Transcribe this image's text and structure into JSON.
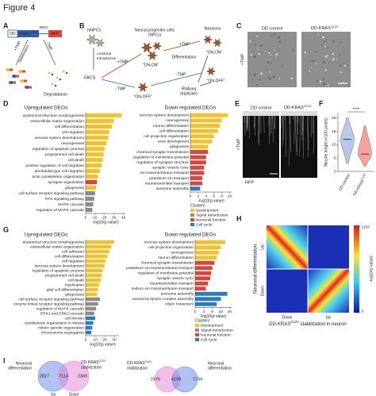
{
  "figure_title": "Figure 4",
  "panel_labels": [
    "A",
    "B",
    "C",
    "D",
    "E",
    "F",
    "G",
    "H",
    "I"
  ],
  "panel_a": {
    "dd": "DD",
    "kras": "KRAS",
    "kras_sup": "G12V",
    "ires": "IRES",
    "rfp": "RFP",
    "plus_tmp": "+TMP",
    "minus_tmp": "-TMP",
    "stabilization": "Stabilization",
    "degradation": "Degradataion"
  },
  "panel_b": {
    "hnpcs": "hNPCs",
    "lentiviral": [
      "Lentiviral",
      "transduction"
    ],
    "facs": "FACS",
    "npcs": [
      "Neural progenitor cells",
      "(NPCs)"
    ],
    "tmp_labels": [
      "+TMP",
      "-TMP",
      "+TMP",
      "-TMP"
    ],
    "states": [
      "\"ON-ON\"",
      "\"ON-OFF\"",
      "\"ON-ON\"",
      "\"ON-OFF\""
    ],
    "neurons": "Neurons",
    "differentiation": "Differentiation",
    "rnaseq": [
      "RNAseq",
      "(triplicate)"
    ]
  },
  "panel_c": {
    "labels": [
      "DD control",
      "DD-KRAS"
    ],
    "sup": "G12V",
    "side": "+TMP"
  },
  "panel_e": {
    "labels": [
      "DD control",
      "DD-KRAS"
    ],
    "sup": "G12V",
    "side": "+TMP",
    "channel": "RFP"
  },
  "chart_data": [
    {
      "type": "hbar",
      "title": "Upregulated DEGs",
      "categories": [
        "anatomical structure morphogenesis",
        "extracellular matrix organization",
        "cell differentiation",
        "cell migration",
        "nervous system development",
        "neurogenesis",
        "regulation of apoptotic process",
        "programmed cell death",
        "cell death",
        "positive regulation of cell migration",
        "ameboidal-type cell migration",
        "actin cytoskeleton organization",
        "synapse organization",
        "gliogenesis",
        "cell surface receptor signaling pathway",
        "RTK signaling pathway",
        "MAPK cascade",
        "regulation of MAPK cascade"
      ],
      "values": [
        38,
        30,
        28,
        25,
        24,
        22,
        20,
        19,
        18,
        17,
        15,
        13,
        12,
        11,
        10,
        9,
        8,
        7
      ],
      "colors": [
        "#f2c12e",
        "#f2c12e",
        "#f2c12e",
        "#f2c12e",
        "#f2c12e",
        "#f2c12e",
        "#f2c12e",
        "#f2c12e",
        "#f2c12e",
        "#f2c12e",
        "#f2c12e",
        "#f2c12e",
        "#d9443d",
        "#f2c12e",
        "#8c8c8c",
        "#8c8c8c",
        "#8c8c8c",
        "#8c8c8c"
      ],
      "xlim": [
        0,
        42
      ],
      "xticks": [
        0,
        10,
        20,
        30,
        40
      ],
      "xlabel": "-log10(p value)"
    },
    {
      "type": "hbar",
      "title": "Down regulated DEGs",
      "categories": [
        "nervous system development",
        "neurogenesis",
        "neuron differentiation",
        "cell differentiation",
        "cell projection organization",
        "axon development",
        "gliogenesis",
        "chemical synaptic transmission",
        "regulation of membrane potential",
        "regulation of synapse structure",
        "synaptic vesicle cycle",
        "ion transmembrane transport",
        "potassium ion transport",
        "neurotransmitter transport",
        "axoneme assembly"
      ],
      "values": [
        9.5,
        8,
        7.5,
        7,
        6,
        5.5,
        4.5,
        4.5,
        4,
        4,
        3.5,
        3.5,
        3,
        3,
        2.5
      ],
      "colors": [
        "#f2c12e",
        "#f2c12e",
        "#f2c12e",
        "#f2c12e",
        "#f2c12e",
        "#f2c12e",
        "#f2c12e",
        "#d9443d",
        "#d9443d",
        "#d9443d",
        "#d9443d",
        "#d9443d",
        "#d9443d",
        "#d9443d",
        "#2b7bbf"
      ],
      "xlim": [
        0,
        10.5
      ],
      "xticks": [
        0,
        2,
        4,
        6,
        8,
        10
      ],
      "xlabel": "-log10(p value)",
      "legend": {
        "title": "Clusters",
        "items": [
          {
            "name": "Development",
            "color": "#f2c12e"
          },
          {
            "name": "Signal transduction",
            "color": "#8c8c8c"
          },
          {
            "name": "Neuronal function",
            "color": "#d9443d"
          },
          {
            "name": "Cell cycle",
            "color": "#2b7bbf"
          }
        ]
      }
    },
    {
      "type": "hbar",
      "title": "Upregulated DEGs",
      "categories": [
        "anatomical structure morphogenesis",
        "extracellular matrix organization",
        "cell adhesion",
        "cell differentiation",
        "cell migration",
        "nervous system development",
        "regulation of apoptotic process",
        "programmed cell death",
        "cell death",
        "myelination",
        "glial cell differentiation",
        "gliogenesis",
        "cell surface receptor signaling pathway",
        "enzyme linked receptor signaling pathway",
        "regulation of MAPK cascade",
        "ERK1 and ERK2 cascade",
        "cell division",
        "cytoskeleton organization in mitosis",
        "mitotic spindle organization",
        "chromosome segregation"
      ],
      "values": [
        30,
        27,
        25,
        23,
        21,
        20,
        18,
        17,
        16,
        14,
        13,
        12,
        15,
        13,
        11,
        9,
        10,
        8,
        7,
        6
      ],
      "colors": [
        "#f2c12e",
        "#f2c12e",
        "#f2c12e",
        "#f2c12e",
        "#f2c12e",
        "#f2c12e",
        "#f2c12e",
        "#f2c12e",
        "#f2c12e",
        "#f2c12e",
        "#f2c12e",
        "#f2c12e",
        "#8c8c8c",
        "#8c8c8c",
        "#8c8c8c",
        "#8c8c8c",
        "#2b7bbf",
        "#2b7bbf",
        "#2b7bbf",
        "#2b7bbf"
      ],
      "xlim": [
        0,
        35
      ],
      "xticks": [
        0,
        10,
        20,
        30
      ],
      "xlabel": "-log10(p value)"
    },
    {
      "type": "hbar",
      "title": "Down regulated DEGs",
      "categories": [
        "nervous system development",
        "cell projection organization",
        "neurogenesis",
        "neuron differentiation",
        "chemical synaptic transmission",
        "potassium ion transmembrane transport",
        "regulation of membrane potential",
        "synaptic vesicle cycle",
        "neurotransmitter transport",
        "sodium ion transmembrane transport",
        "axoneme assembly",
        "axonemal dynein complex assembly",
        "cilium movement"
      ],
      "values": [
        14,
        12,
        11,
        10,
        9,
        8,
        7.5,
        7,
        6,
        5,
        15,
        12,
        10
      ],
      "colors": [
        "#f2c12e",
        "#f2c12e",
        "#f2c12e",
        "#f2c12e",
        "#d9443d",
        "#d9443d",
        "#d9443d",
        "#d9443d",
        "#d9443d",
        "#d9443d",
        "#2b7bbf",
        "#2b7bbf",
        "#2b7bbf"
      ],
      "xlim": [
        0,
        17
      ],
      "xticks": [
        0,
        4,
        8,
        12,
        16
      ],
      "xlabel": "-log10(p value)",
      "legend": {
        "title": "Clusters",
        "items": [
          {
            "name": "Development",
            "color": "#f2c12e"
          },
          {
            "name": "Signal transduction",
            "color": "#8c8c8c"
          },
          {
            "name": "Neuronal function",
            "color": "#d9443d"
          },
          {
            "name": "Cell cycle",
            "color": "#2b7bbf"
          }
        ]
      }
    },
    {
      "type": "violin",
      "categories": [
        {
          "label": "DD control"
        },
        {
          "label": "DD-KRAS",
          "sup": "G12V"
        }
      ],
      "medians": [
        12,
        6.5
      ],
      "mins": [
        3,
        2
      ],
      "maxs": [
        20,
        17
      ],
      "colors": [
        "#a9b9e6",
        "#f08a8a"
      ],
      "ylim": [
        0,
        22
      ],
      "yticks": [
        0,
        5,
        10,
        15,
        20
      ],
      "ylabel": "Neurite length (×100 pixels)",
      "significance": "****"
    },
    {
      "type": "heatmap",
      "ylabel": "Neuronal differentiation",
      "y_categories": [
        "Down",
        "Up"
      ],
      "x_categories": [
        "Down",
        "Up"
      ],
      "xlabel": {
        "text": "DD-KRAS",
        "sup": "G12V",
        "rest": " stabilization in neuron"
      },
      "clim": [
        0,
        1153
      ],
      "cticks": [
        0,
        1153
      ],
      "clabel": "-log10(p value)"
    },
    {
      "type": "venn",
      "sets": [
        {
          "lines": [
            "Neuronal",
            "differentiation"
          ],
          "color": "#6f8fe6"
        },
        {
          "lines": [
            "DD-KRAS",
            "stabilization"
          ],
          "sup": "G12V",
          "color": "#e58ad8"
        }
      ],
      "values": [
        2827,
        7114,
        2369
      ],
      "circle_labels": [
        "Up",
        "Down"
      ]
    },
    {
      "type": "venn",
      "sets": [
        {
          "lines": [
            "DD-KRAS",
            "stabilization"
          ],
          "sup": "G12V",
          "color": "#e58ad8"
        },
        {
          "lines": [
            "Neuronal",
            "differentiation"
          ],
          "color": "#6f8fe6"
        }
      ],
      "values": [
        2476,
        4199,
        1734
      ]
    }
  ]
}
